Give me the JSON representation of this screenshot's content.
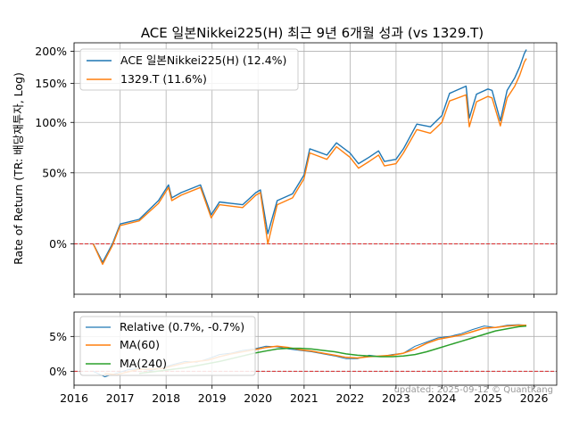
{
  "chart_data": [
    {
      "type": "line",
      "title": "ACE 일본Nikkei225(H) 최근 9년 6개월 성과 (vs 1329.T)",
      "ylabel": "Rate of Return (TR: 배당재투자, Log)",
      "yscale": "log(1+r)",
      "yticks": [
        "0%",
        "50%",
        "100%",
        "150%",
        "200%"
      ],
      "ylim": [
        -0.25,
        2.15
      ],
      "xlim": [
        "2016-01-01",
        "2026-06-30"
      ],
      "grid": true,
      "legend_position": "top-left",
      "baseline": {
        "value": 0,
        "color": "#d62728",
        "style": "dashed"
      },
      "series": [
        {
          "name": "ACE 일본Nikkei225(H) (12.4%)",
          "color": "#1f77b4",
          "points": [
            [
              "2016-06-01",
              0.0
            ],
            [
              "2016-08-15",
              -0.1
            ],
            [
              "2016-11-01",
              0.0
            ],
            [
              "2017-01-01",
              0.12
            ],
            [
              "2017-06-01",
              0.15
            ],
            [
              "2017-11-01",
              0.28
            ],
            [
              "2018-01-20",
              0.4
            ],
            [
              "2018-02-15",
              0.3
            ],
            [
              "2018-05-01",
              0.34
            ],
            [
              "2018-10-01",
              0.4
            ],
            [
              "2018-12-25",
              0.18
            ],
            [
              "2019-03-01",
              0.27
            ],
            [
              "2019-06-01",
              0.26
            ],
            [
              "2019-09-01",
              0.25
            ],
            [
              "2019-12-15",
              0.34
            ],
            [
              "2020-01-20",
              0.36
            ],
            [
              "2020-03-19",
              0.06
            ],
            [
              "2020-06-01",
              0.28
            ],
            [
              "2020-10-01",
              0.33
            ],
            [
              "2020-12-31",
              0.48
            ],
            [
              "2021-02-15",
              0.72
            ],
            [
              "2021-04-01",
              0.7
            ],
            [
              "2021-07-01",
              0.66
            ],
            [
              "2021-09-15",
              0.78
            ],
            [
              "2021-12-31",
              0.68
            ],
            [
              "2022-03-09",
              0.58
            ],
            [
              "2022-06-01",
              0.64
            ],
            [
              "2022-08-15",
              0.7
            ],
            [
              "2022-10-01",
              0.6
            ],
            [
              "2022-12-31",
              0.62
            ],
            [
              "2023-03-01",
              0.72
            ],
            [
              "2023-06-15",
              0.98
            ],
            [
              "2023-10-01",
              0.95
            ],
            [
              "2023-12-31",
              1.08
            ],
            [
              "2024-03-01",
              1.36
            ],
            [
              "2024-07-10",
              1.46
            ],
            [
              "2024-08-05",
              1.05
            ],
            [
              "2024-10-01",
              1.35
            ],
            [
              "2024-12-31",
              1.42
            ],
            [
              "2025-02-01",
              1.4
            ],
            [
              "2025-04-08",
              1.02
            ],
            [
              "2025-06-01",
              1.4
            ],
            [
              "2025-08-01",
              1.58
            ],
            [
              "2025-09-10",
              1.75
            ],
            [
              "2025-10-15",
              1.96
            ],
            [
              "2025-11-01",
              2.03
            ]
          ]
        },
        {
          "name": "1329.T (11.6%)",
          "color": "#ff7f0e",
          "points": [
            [
              "2016-06-01",
              0.0
            ],
            [
              "2016-08-15",
              -0.11
            ],
            [
              "2016-11-01",
              -0.01
            ],
            [
              "2017-01-01",
              0.11
            ],
            [
              "2017-06-01",
              0.14
            ],
            [
              "2017-11-01",
              0.26
            ],
            [
              "2018-01-20",
              0.38
            ],
            [
              "2018-02-15",
              0.28
            ],
            [
              "2018-05-01",
              0.32
            ],
            [
              "2018-10-01",
              0.38
            ],
            [
              "2018-12-25",
              0.16
            ],
            [
              "2019-03-01",
              0.25
            ],
            [
              "2019-06-01",
              0.24
            ],
            [
              "2019-09-01",
              0.23
            ],
            [
              "2019-12-15",
              0.32
            ],
            [
              "2020-01-20",
              0.34
            ],
            [
              "2020-03-19",
              0.0
            ],
            [
              "2020-06-01",
              0.25
            ],
            [
              "2020-10-01",
              0.3
            ],
            [
              "2020-12-31",
              0.45
            ],
            [
              "2021-02-15",
              0.68
            ],
            [
              "2021-04-01",
              0.66
            ],
            [
              "2021-07-01",
              0.62
            ],
            [
              "2021-09-15",
              0.74
            ],
            [
              "2021-12-31",
              0.64
            ],
            [
              "2022-03-09",
              0.54
            ],
            [
              "2022-06-01",
              0.6
            ],
            [
              "2022-08-15",
              0.66
            ],
            [
              "2022-10-01",
              0.56
            ],
            [
              "2022-12-31",
              0.58
            ],
            [
              "2023-03-01",
              0.68
            ],
            [
              "2023-06-15",
              0.92
            ],
            [
              "2023-10-01",
              0.88
            ],
            [
              "2023-12-31",
              1.0
            ],
            [
              "2024-03-01",
              1.26
            ],
            [
              "2024-07-10",
              1.34
            ],
            [
              "2024-08-05",
              0.95
            ],
            [
              "2024-10-01",
              1.25
            ],
            [
              "2024-12-31",
              1.32
            ],
            [
              "2025-02-01",
              1.3
            ],
            [
              "2025-04-08",
              0.96
            ],
            [
              "2025-06-01",
              1.3
            ],
            [
              "2025-08-01",
              1.46
            ],
            [
              "2025-09-10",
              1.62
            ],
            [
              "2025-10-15",
              1.82
            ],
            [
              "2025-11-01",
              1.88
            ]
          ]
        }
      ]
    },
    {
      "type": "line",
      "yticks": [
        "0%",
        "5%"
      ],
      "ylim": [
        -2.0,
        8.5
      ],
      "xlim": [
        "2016-01-01",
        "2026-06-30"
      ],
      "xticks": [
        "2016",
        "2017",
        "2018",
        "2019",
        "2020",
        "2021",
        "2022",
        "2023",
        "2024",
        "2025",
        "2026"
      ],
      "grid": true,
      "legend_position": "top-left",
      "baseline": {
        "value": 0,
        "color": "#d62728",
        "style": "dashed"
      },
      "annotation": "updated: 2025-09-12 © QuantKang",
      "series": [
        {
          "name": "Relative (0.7%, -0.7%)",
          "color": "#1f77b4",
          "points": [
            [
              "2016-06-01",
              0.0
            ],
            [
              "2016-09-01",
              -0.8
            ],
            [
              "2016-12-01",
              -0.3
            ],
            [
              "2017-03-01",
              0.2
            ],
            [
              "2017-06-01",
              0.4
            ],
            [
              "2017-09-01",
              0.1
            ],
            [
              "2017-12-01",
              0.5
            ],
            [
              "2018-03-01",
              1.0
            ],
            [
              "2018-06-01",
              1.4
            ],
            [
              "2018-09-01",
              1.3
            ],
            [
              "2018-12-01",
              1.8
            ],
            [
              "2019-03-01",
              2.4
            ],
            [
              "2019-06-01",
              2.6
            ],
            [
              "2019-09-01",
              3.0
            ],
            [
              "2019-12-01",
              3.2
            ],
            [
              "2020-03-01",
              3.6
            ],
            [
              "2020-06-01",
              3.5
            ],
            [
              "2020-09-01",
              3.2
            ],
            [
              "2020-12-01",
              3.0
            ],
            [
              "2021-03-01",
              2.8
            ],
            [
              "2021-06-01",
              2.5
            ],
            [
              "2021-09-01",
              2.2
            ],
            [
              "2021-12-01",
              1.8
            ],
            [
              "2022-03-01",
              1.8
            ],
            [
              "2022-06-01",
              2.3
            ],
            [
              "2022-09-01",
              2.1
            ],
            [
              "2022-12-01",
              2.4
            ],
            [
              "2023-03-01",
              2.6
            ],
            [
              "2023-06-01",
              3.6
            ],
            [
              "2023-09-01",
              4.2
            ],
            [
              "2023-12-01",
              4.8
            ],
            [
              "2024-03-01",
              5.0
            ],
            [
              "2024-06-01",
              5.4
            ],
            [
              "2024-09-01",
              6.0
            ],
            [
              "2024-12-01",
              6.5
            ],
            [
              "2025-03-01",
              6.3
            ],
            [
              "2025-06-01",
              6.6
            ],
            [
              "2025-09-01",
              6.7
            ],
            [
              "2025-11-01",
              6.6
            ]
          ]
        },
        {
          "name": "MA(60)",
          "color": "#ff7f0e",
          "points": [
            [
              "2016-09-01",
              -0.3
            ],
            [
              "2016-12-01",
              -0.5
            ],
            [
              "2017-03-01",
              -0.1
            ],
            [
              "2017-06-01",
              0.3
            ],
            [
              "2017-09-01",
              0.3
            ],
            [
              "2017-12-01",
              0.4
            ],
            [
              "2018-03-01",
              0.8
            ],
            [
              "2018-06-01",
              1.2
            ],
            [
              "2018-09-01",
              1.4
            ],
            [
              "2018-12-01",
              1.6
            ],
            [
              "2019-03-01",
              2.1
            ],
            [
              "2019-06-01",
              2.5
            ],
            [
              "2019-09-01",
              2.8
            ],
            [
              "2019-12-01",
              3.1
            ],
            [
              "2020-03-01",
              3.4
            ],
            [
              "2020-06-01",
              3.6
            ],
            [
              "2020-09-01",
              3.4
            ],
            [
              "2020-12-01",
              3.1
            ],
            [
              "2021-03-01",
              2.9
            ],
            [
              "2021-06-01",
              2.6
            ],
            [
              "2021-09-01",
              2.3
            ],
            [
              "2021-12-01",
              2.0
            ],
            [
              "2022-03-01",
              1.9
            ],
            [
              "2022-06-01",
              2.1
            ],
            [
              "2022-09-01",
              2.2
            ],
            [
              "2022-12-01",
              2.3
            ],
            [
              "2023-03-01",
              2.6
            ],
            [
              "2023-06-01",
              3.2
            ],
            [
              "2023-09-01",
              4.0
            ],
            [
              "2023-12-01",
              4.6
            ],
            [
              "2024-03-01",
              4.9
            ],
            [
              "2024-06-01",
              5.2
            ],
            [
              "2024-09-01",
              5.7
            ],
            [
              "2024-12-01",
              6.2
            ],
            [
              "2025-03-01",
              6.3
            ],
            [
              "2025-06-01",
              6.5
            ],
            [
              "2025-09-01",
              6.6
            ],
            [
              "2025-11-01",
              6.6
            ]
          ]
        },
        {
          "name": "MA(240)",
          "color": "#2ca02c",
          "points": [
            [
              "2017-06-01",
              -0.3
            ],
            [
              "2017-09-01",
              -0.1
            ],
            [
              "2017-12-01",
              0.1
            ],
            [
              "2018-03-01",
              0.3
            ],
            [
              "2018-06-01",
              0.5
            ],
            [
              "2018-09-01",
              0.8
            ],
            [
              "2018-12-01",
              1.1
            ],
            [
              "2019-03-01",
              1.4
            ],
            [
              "2019-06-01",
              1.8
            ],
            [
              "2019-09-01",
              2.2
            ],
            [
              "2019-12-01",
              2.6
            ],
            [
              "2020-03-01",
              2.9
            ],
            [
              "2020-06-01",
              3.2
            ],
            [
              "2020-09-01",
              3.3
            ],
            [
              "2020-12-01",
              3.3
            ],
            [
              "2021-03-01",
              3.2
            ],
            [
              "2021-06-01",
              3.0
            ],
            [
              "2021-09-01",
              2.8
            ],
            [
              "2021-12-01",
              2.5
            ],
            [
              "2022-03-01",
              2.3
            ],
            [
              "2022-06-01",
              2.2
            ],
            [
              "2022-09-01",
              2.1
            ],
            [
              "2022-12-01",
              2.1
            ],
            [
              "2023-03-01",
              2.2
            ],
            [
              "2023-06-01",
              2.4
            ],
            [
              "2023-09-01",
              2.8
            ],
            [
              "2023-12-01",
              3.3
            ],
            [
              "2024-03-01",
              3.8
            ],
            [
              "2024-06-01",
              4.3
            ],
            [
              "2024-09-01",
              4.8
            ],
            [
              "2024-12-01",
              5.3
            ],
            [
              "2025-03-01",
              5.8
            ],
            [
              "2025-06-01",
              6.1
            ],
            [
              "2025-09-01",
              6.4
            ],
            [
              "2025-11-01",
              6.5
            ]
          ]
        }
      ]
    }
  ]
}
